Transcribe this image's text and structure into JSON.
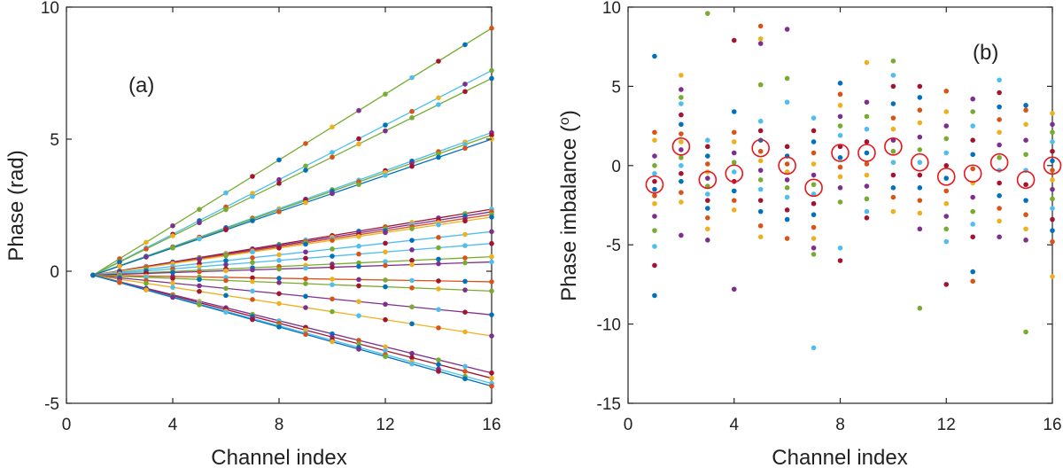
{
  "palette": [
    "#0072BD",
    "#D95319",
    "#EDB120",
    "#7E2F8E",
    "#77AC30",
    "#4DBEEE",
    "#A2142F"
  ],
  "chart_data": [
    {
      "type": "line",
      "panel_label": "(a)",
      "title": "",
      "xlabel": "Channel index",
      "ylabel": "Phase (rad)",
      "xlim": [
        0,
        16
      ],
      "ylim": [
        -5,
        10
      ],
      "xticks": [
        0,
        4,
        8,
        12,
        16
      ],
      "yticks": [
        -5,
        0,
        5,
        10
      ],
      "x": [
        1,
        2,
        3,
        4,
        5,
        6,
        7,
        8,
        9,
        10,
        11,
        12,
        13,
        14,
        15,
        16
      ],
      "series": [
        {
          "name": "s1",
          "color": "#77AC30",
          "start": -0.15,
          "end": 9.2
        },
        {
          "name": "s2",
          "color": "#4DBEEE",
          "start": -0.15,
          "end": 7.6
        },
        {
          "name": "s3",
          "color": "#77AC30",
          "start": -0.15,
          "end": 7.3
        },
        {
          "name": "s4",
          "color": "#4DBEEE",
          "start": -0.15,
          "end": 5.25
        },
        {
          "name": "s5",
          "color": "#77AC30",
          "start": -0.15,
          "end": 5.15
        },
        {
          "name": "s6",
          "color": "#0072BD",
          "start": -0.15,
          "end": 5.0
        },
        {
          "name": "s7",
          "color": "#A2142F",
          "start": -0.15,
          "end": 2.35
        },
        {
          "name": "s8",
          "color": "#7E2F8E",
          "start": -0.15,
          "end": 2.25
        },
        {
          "name": "s9",
          "color": "#D95319",
          "start": -0.15,
          "end": 2.15
        },
        {
          "name": "s10",
          "color": "#EDB120",
          "start": -0.15,
          "end": 2.05
        },
        {
          "name": "s11",
          "color": "#4DBEEE",
          "start": -0.15,
          "end": 1.5
        },
        {
          "name": "s12",
          "color": "#4DBEEE",
          "start": -0.15,
          "end": 1.05
        },
        {
          "name": "s13",
          "color": "#77AC30",
          "start": -0.15,
          "end": 0.55
        },
        {
          "name": "s14",
          "color": "#7E2F8E",
          "start": -0.15,
          "end": 0.35
        },
        {
          "name": "s15",
          "color": "#D95319",
          "start": -0.15,
          "end": -0.4
        },
        {
          "name": "s16",
          "color": "#77AC30",
          "start": -0.15,
          "end": -0.75
        },
        {
          "name": "s17",
          "color": "#7E2F8E",
          "start": -0.15,
          "end": -1.65
        },
        {
          "name": "s18",
          "color": "#EDB120",
          "start": -0.15,
          "end": -2.45
        },
        {
          "name": "s19",
          "color": "#7E2F8E",
          "start": -0.15,
          "end": -3.85
        },
        {
          "name": "s20",
          "color": "#A2142F",
          "start": -0.15,
          "end": -4.05
        },
        {
          "name": "s21",
          "color": "#4DBEEE",
          "start": -0.15,
          "end": -4.25
        },
        {
          "name": "s22",
          "color": "#0072BD",
          "start": -0.15,
          "end": -4.35
        }
      ]
    },
    {
      "type": "scatter",
      "panel_label": "(b)",
      "title": "",
      "xlabel": "Channel index",
      "ylabel": "Phase imbalance (",
      "ylabel_sup": "o",
      "ylabel_end": ")",
      "xlim": [
        0,
        16
      ],
      "ylim": [
        -15,
        10
      ],
      "xticks": [
        0,
        4,
        8,
        12,
        16
      ],
      "yticks": [
        -15,
        -10,
        -5,
        0,
        5,
        10
      ],
      "points": [
        {
          "x": 1,
          "y": [
            6.9,
            2.1,
            1.6,
            0.6,
            0.0,
            -0.5,
            -1.0,
            -1.5,
            -1.9,
            -2.4,
            -3.2,
            -4.1,
            -5.1,
            -6.3,
            -8.2
          ]
        },
        {
          "x": 2,
          "y": [
            5.7,
            4.8,
            4.3,
            3.9,
            3.2,
            2.6,
            2.0,
            1.5,
            1.0,
            0.5,
            0.0,
            -0.5,
            -1.0,
            -1.7,
            -2.3,
            -4.4
          ]
        },
        {
          "x": 3,
          "y": [
            9.6,
            1.6,
            1.2,
            0.6,
            0.1,
            -0.4,
            -0.8,
            -1.3,
            -1.8,
            -2.2,
            -2.7,
            -3.3,
            -4.0,
            -4.7
          ]
        },
        {
          "x": 4,
          "y": [
            7.9,
            3.4,
            2.1,
            1.5,
            0.8,
            0.2,
            -0.4,
            -1.0,
            -1.6,
            -2.2,
            -2.8,
            -7.8
          ]
        },
        {
          "x": 5,
          "y": [
            8.8,
            8.0,
            7.7,
            5.1,
            2.8,
            2.2,
            1.6,
            0.9,
            0.3,
            -0.3,
            -0.9,
            -1.5,
            -2.2,
            -2.9,
            -3.8,
            -4.5
          ]
        },
        {
          "x": 6,
          "y": [
            8.6,
            5.5,
            4.0,
            1.2,
            0.6,
            0.1,
            -0.4,
            -0.9,
            -1.4,
            -2.0,
            -2.8,
            -3.4,
            -4.6
          ]
        },
        {
          "x": 7,
          "y": [
            3.0,
            2.2,
            1.5,
            0.8,
            0.1,
            -0.6,
            -1.2,
            -1.8,
            -2.4,
            -3.1,
            -3.9,
            -4.6,
            -5.2,
            -5.6,
            -11.5
          ]
        },
        {
          "x": 8,
          "y": [
            5.2,
            4.5,
            3.8,
            3.1,
            2.5,
            1.9,
            1.2,
            0.5,
            -0.1,
            -0.7,
            -1.4,
            -2.3,
            -5.2,
            -6.0
          ]
        },
        {
          "x": 9,
          "y": [
            6.5,
            4.0,
            3.1,
            2.3,
            1.5,
            0.8,
            0.1,
            -0.6,
            -1.3,
            -2.1,
            -2.9,
            -3.3
          ]
        },
        {
          "x": 10,
          "y": [
            6.6,
            5.7,
            5.0,
            3.9,
            3.0,
            2.3,
            1.6,
            0.9,
            0.2,
            -0.6,
            -1.4,
            -2.0,
            -2.9
          ]
        },
        {
          "x": 11,
          "y": [
            5.0,
            4.3,
            3.5,
            2.7,
            1.8,
            1.0,
            0.2,
            -0.6,
            -1.4,
            -2.2,
            -3.0,
            -4.0,
            -9.0
          ]
        },
        {
          "x": 12,
          "y": [
            4.7,
            3.4,
            2.5,
            1.7,
            0.8,
            0.0,
            -0.8,
            -1.6,
            -2.4,
            -3.2,
            -4.0,
            -4.8,
            -7.5
          ]
        },
        {
          "x": 13,
          "y": [
            4.2,
            3.4,
            2.5,
            1.6,
            0.7,
            -0.2,
            -1.1,
            -2.0,
            -2.9,
            -3.7,
            -4.5,
            -6.7,
            -7.3
          ]
        },
        {
          "x": 14,
          "y": [
            5.4,
            4.6,
            3.7,
            2.9,
            2.1,
            1.3,
            0.5,
            -0.3,
            -1.1,
            -1.9,
            -2.7,
            -3.5,
            -4.5
          ]
        },
        {
          "x": 15,
          "y": [
            3.8,
            3.5,
            2.6,
            1.6,
            0.7,
            -0.3,
            -1.2,
            -2.2,
            -3.1,
            -4.0,
            -4.7,
            -10.5
          ]
        },
        {
          "x": 16,
          "y": [
            3.3,
            2.6,
            2.1,
            1.5,
            0.9,
            0.3,
            -0.3,
            -0.9,
            -1.5,
            -2.1,
            -2.7,
            -3.4,
            -4.1,
            -4.8,
            -7.0
          ]
        }
      ],
      "mean_markers": [
        {
          "x": 1,
          "y": -1.2
        },
        {
          "x": 2,
          "y": 1.2
        },
        {
          "x": 3,
          "y": -0.9
        },
        {
          "x": 4,
          "y": -0.5
        },
        {
          "x": 5,
          "y": 1.1
        },
        {
          "x": 6,
          "y": 0.0
        },
        {
          "x": 7,
          "y": -1.4
        },
        {
          "x": 8,
          "y": 0.8
        },
        {
          "x": 9,
          "y": 0.8
        },
        {
          "x": 10,
          "y": 1.2
        },
        {
          "x": 11,
          "y": 0.2
        },
        {
          "x": 12,
          "y": -0.7
        },
        {
          "x": 13,
          "y": -0.5
        },
        {
          "x": 14,
          "y": 0.2
        },
        {
          "x": 15,
          "y": -0.9
        },
        {
          "x": 16,
          "y": 0.0
        }
      ],
      "mean_marker_color": "#E8151B"
    }
  ]
}
